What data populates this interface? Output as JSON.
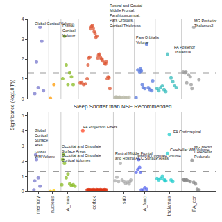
{
  "chart_data": [
    {
      "type": "scatter",
      "xlim": [
        -0.3,
        10.5
      ],
      "ylim": [
        0,
        4.0
      ],
      "yticks": [
        0,
        1,
        2,
        3,
        4
      ],
      "tick_labels": "y",
      "grid": false,
      "hline": 1.3,
      "vlines": [
        0.9,
        1.6,
        2.6,
        4.6,
        5.8,
        7.0,
        8.5
      ],
      "series": [
        {
          "color": "#7777cc",
          "x": [
            0.1,
            0.2,
            0.3,
            0.4,
            0.5,
            0.6
          ],
          "values": [
            0.25,
            1.85,
            0.55,
            3.6,
            2.9,
            0.4
          ]
        },
        {
          "color": "#ff9900",
          "x": [
            1.0,
            1.2
          ],
          "values": [
            0.0,
            0.7
          ]
        },
        {
          "color": "#88bb22",
          "x": [
            1.7,
            1.8,
            1.9,
            2.0,
            2.1,
            2.2,
            2.3
          ],
          "values": [
            1.0,
            3.15,
            1.7,
            0.7,
            1.3,
            1.1,
            0.7
          ]
        },
        {
          "color": "#dd5533",
          "x": [
            2.7,
            2.8,
            2.9,
            3.0,
            3.1,
            3.15,
            3.2,
            3.25,
            3.3,
            3.35,
            3.4,
            3.45,
            3.5,
            3.55,
            3.6,
            3.65,
            3.7,
            3.75,
            3.8,
            3.85,
            3.9,
            3.95,
            4.0,
            4.1,
            4.15,
            4.2,
            4.25,
            4.3,
            4.35,
            4.4
          ],
          "values": [
            0.8,
            0.8,
            0.7,
            0.75,
            1.0,
            1.7,
            2.05,
            2.1,
            3.55,
            3.65,
            3.7,
            3.55,
            3.4,
            3.3,
            3.1,
            3.15,
            2.05,
            2.2,
            2.25,
            2.1,
            2.0,
            2.0,
            1.9,
            1.8,
            1.75,
            1.85,
            1.0,
            1.1,
            1.05,
            0.5
          ]
        },
        {
          "color": "#bbbbaa",
          "x": [
            4.7,
            4.75,
            4.8,
            4.85,
            4.9,
            4.95,
            5.0,
            5.1,
            5.2,
            5.3,
            5.4,
            5.5
          ],
          "values": [
            0.05,
            0.08,
            0.05,
            0.06,
            0.05,
            0.07,
            0.04,
            0.05,
            0.06,
            0.04,
            0.05,
            0.06
          ]
        },
        {
          "color": "#5577dd",
          "x": [
            5.9,
            6.0,
            6.1,
            6.15,
            6.2,
            6.25,
            6.3,
            6.4,
            6.5,
            6.6,
            6.7,
            6.8,
            6.85
          ],
          "values": [
            0.05,
            1.45,
            1.35,
            1.5,
            1.4,
            0.7,
            0.55,
            0.5,
            2.75,
            0.55,
            0.45,
            0.4,
            0.9
          ]
        },
        {
          "color": "#33bbbb",
          "x": [
            7.1,
            7.2,
            7.3,
            7.4,
            7.5,
            7.6,
            7.7,
            7.9,
            8.0,
            8.1,
            8.2
          ],
          "values": [
            0.5,
            0.4,
            0.55,
            0.65,
            0.45,
            0.35,
            2.25,
            1.05,
            0.85,
            0.65,
            0.55
          ]
        },
        {
          "color": "#999999",
          "x": [
            8.6,
            8.7,
            8.75,
            8.8,
            8.9,
            9.0,
            9.05,
            9.1,
            9.2,
            9.5
          ],
          "values": [
            1.35,
            1.3,
            1.35,
            0.8,
            1.2,
            1.1,
            0.7,
            0.5,
            3.6,
            0.95
          ]
        }
      ],
      "annotations": [
        {
          "text": "Global Cortical Volume",
          "x": 0.05,
          "y": 3.65
        },
        {
          "text": "Frontal\nCortical\nVolume",
          "x": 1.65,
          "y": 3.05
        },
        {
          "text": "Rostral and Caudal\nMiddle Frontal,\nParahippocampal,\nPars Orbitalis,\nCortical Thickness",
          "x": 4.35,
          "y": 3.55
        },
        {
          "text": "Pars Orbitalis\nVolume",
          "x": 5.85,
          "y": 2.7
        },
        {
          "text": "FA Posterior\nThalamus",
          "x": 8.05,
          "y": 2.2
        },
        {
          "text": "MG Posterior\nThalamus2",
          "x": 9.2,
          "y": 3.55
        }
      ]
    },
    {
      "type": "scatter",
      "title": "Sleep Shorter than NSF Recommended",
      "ylabel": "Significance (-log10(P))",
      "xlim": [
        -0.3,
        10.5
      ],
      "xticks": [
        {
          "value": 0.3,
          "label": "memory"
        },
        {
          "value": 1.1,
          "label": "nucleus"
        },
        {
          "value": 2.0,
          "label": "A_mus"
        },
        {
          "value": 3.5,
          "label": "cortex"
        },
        {
          "value": 5.2,
          "label": "sub"
        },
        {
          "value": 6.4,
          "label": "A_func"
        },
        {
          "value": 7.8,
          "label": "thalamus"
        },
        {
          "value": 9.2,
          "label": "FA_cor"
        }
      ],
      "ylim": [
        0,
        5.2
      ],
      "yticks": [
        0,
        1,
        2,
        3,
        4,
        5
      ],
      "grid": false,
      "hline": 1.3,
      "vlines": [
        0.9,
        1.6,
        2.6,
        4.6,
        5.8,
        7.0,
        8.5
      ],
      "series": [
        {
          "color": "#7777cc",
          "x": [
            0.05,
            0.1,
            0.15,
            0.2,
            0.3,
            0.4
          ],
          "values": [
            0.1,
            0.7,
            2.4,
            2.1,
            0.9,
            0.35
          ]
        },
        {
          "color": "#ffcc00",
          "x": [
            1.0,
            1.2
          ],
          "values": [
            0.0,
            0.05
          ]
        },
        {
          "color": "#88bb22",
          "x": [
            1.65,
            1.7,
            1.75,
            1.8,
            1.9,
            2.0,
            2.1,
            2.2,
            2.3,
            2.4
          ],
          "values": [
            0.45,
            2.1,
            2.42,
            1.85,
            0.9,
            1.15,
            0.5,
            0.4,
            0.45,
            0.35
          ]
        },
        {
          "color": "#dd3311",
          "x": [
            3.1,
            3.15,
            3.2,
            3.25,
            3.3,
            3.35,
            3.4,
            3.45,
            3.5,
            3.55,
            3.6,
            3.65,
            3.7,
            3.75,
            3.8,
            3.85,
            3.9,
            3.95,
            4.0,
            4.05,
            4.1,
            4.15,
            4.2
          ],
          "values": [
            0.1,
            0.1,
            0.12,
            0.1,
            0.1,
            0.1,
            0.08,
            0.12,
            0.1,
            0.1,
            0.08,
            0.12,
            0.1,
            0.1,
            0.08,
            0.12,
            0.1,
            0.1,
            0.08,
            0.1,
            0.12,
            0.1,
            0.1
          ]
        },
        {
          "color": "#ff4422",
          "x": [
            2.85
          ],
          "values": [
            4.0
          ]
        },
        {
          "color": "#aaaaaa",
          "x": [
            4.7,
            4.8,
            4.9,
            5.0,
            5.1,
            5.2,
            5.3,
            5.4,
            5.5,
            5.55,
            5.6
          ],
          "values": [
            0.7,
            0.95,
            0.65,
            1.85,
            0.75,
            0.65,
            0.55,
            0.6,
            0.5,
            0.65,
            0.75
          ]
        },
        {
          "color": "#5566ee",
          "x": [
            5.9,
            6.0,
            6.05,
            6.1,
            6.15,
            6.2,
            6.3,
            6.4,
            6.5
          ],
          "values": [
            1.25,
            1.45,
            2.1,
            1.6,
            1.25,
            0.1,
            0.1,
            0.25,
            0.15
          ]
        },
        {
          "color": "#22cccc",
          "x": [
            7.1,
            7.2,
            7.3,
            7.4,
            7.5,
            7.55,
            7.6,
            7.7,
            7.8,
            7.9,
            8.0
          ],
          "values": [
            0.85,
            0.75,
            0.85,
            1.0,
            0.8,
            0.7,
            0.7,
            2.5,
            3.75,
            0.75,
            0.65
          ]
        },
        {
          "color": "#888888",
          "x": [
            8.6,
            8.65,
            8.7,
            8.75,
            8.8,
            8.9,
            9.0,
            9.1,
            9.2,
            9.3,
            9.4,
            9.5
          ],
          "values": [
            0.8,
            0.75,
            0.7,
            0.8,
            0.75,
            0.7,
            0.65,
            2.05,
            0.6,
            0.5,
            0.15,
            0.1
          ]
        }
      ],
      "annotations": [
        {
          "text": "Global\nCortical\nSurface\nArea",
          "x": 0.05,
          "y": 2.85
        },
        {
          "text": "Global\nWM Volume",
          "x": 0.05,
          "y": 2.1
        },
        {
          "text": "Occipital and Cingulate\nSurface Areas",
          "x": 1.6,
          "y": 2.45
        },
        {
          "text": "Occipital and Cingulate\nCortical Volumes",
          "x": 1.6,
          "y": 1.85
        },
        {
          "text": "FA Projection Fibers",
          "x": 2.85,
          "y": 4.05
        },
        {
          "text": "Rostral Middle Frontal\nand Rostral ACC Surface Areas",
          "x": 4.65,
          "y": 2.0
        },
        {
          "text": "Isthmus Cingulate Volume",
          "x": 5.9,
          "y": 2.15
        },
        {
          "text": "FA Corticospinal",
          "x": 8.0,
          "y": 3.75
        },
        {
          "text": "Cerebellar WM Volume",
          "x": 7.8,
          "y": 2.55
        },
        {
          "text": "MG Medio\nCerebellar\nPeduncle",
          "x": 9.2,
          "y": 2.1
        }
      ]
    }
  ]
}
